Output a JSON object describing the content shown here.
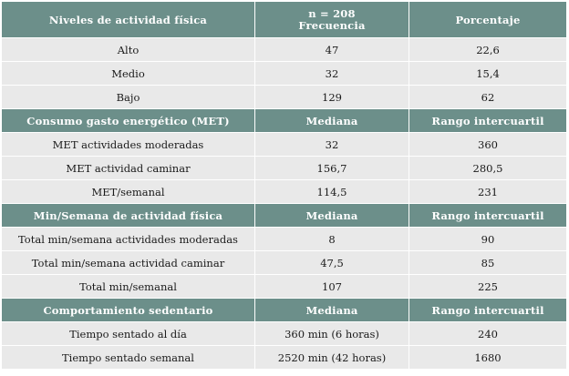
{
  "sections": [
    {
      "headers": [
        "Niveles de actividad física",
        "n = 208",
        "Porcentaje"
      ],
      "subheader": "Frecuencia",
      "rows": [
        [
          "Alto",
          "47",
          "22,6"
        ],
        [
          "Medio",
          "32",
          "15,4"
        ],
        [
          "Bajo",
          "129",
          "62"
        ]
      ]
    },
    {
      "headers": [
        "Consumo gasto energético (MET)",
        "Mediana",
        "Rango intercuartil"
      ],
      "rows": [
        [
          "MET actividades moderadas",
          "32",
          "360"
        ],
        [
          "MET actividad caminar",
          "156,7",
          "280,5"
        ],
        [
          "MET/semanal",
          "114,5",
          "231"
        ]
      ]
    },
    {
      "headers": [
        "Min/Semana de actividad física",
        "Mediana",
        "Rango intercuartil"
      ],
      "rows": [
        [
          "Total min/semana actividades moderadas",
          "8",
          "90"
        ],
        [
          "Total min/semana actividad caminar",
          "47,5",
          "85"
        ],
        [
          "Total min/semanal",
          "107",
          "225"
        ]
      ]
    },
    {
      "headers": [
        "Comportamiento sedentario",
        "Mediana",
        "Rango intercuartil"
      ],
      "rows": [
        [
          "Tiempo sentado al día",
          "360 min (6 horas)",
          "240"
        ],
        [
          "Tiempo sentado semanal",
          "2520 min (42 horas)",
          "1680"
        ]
      ]
    }
  ]
}
